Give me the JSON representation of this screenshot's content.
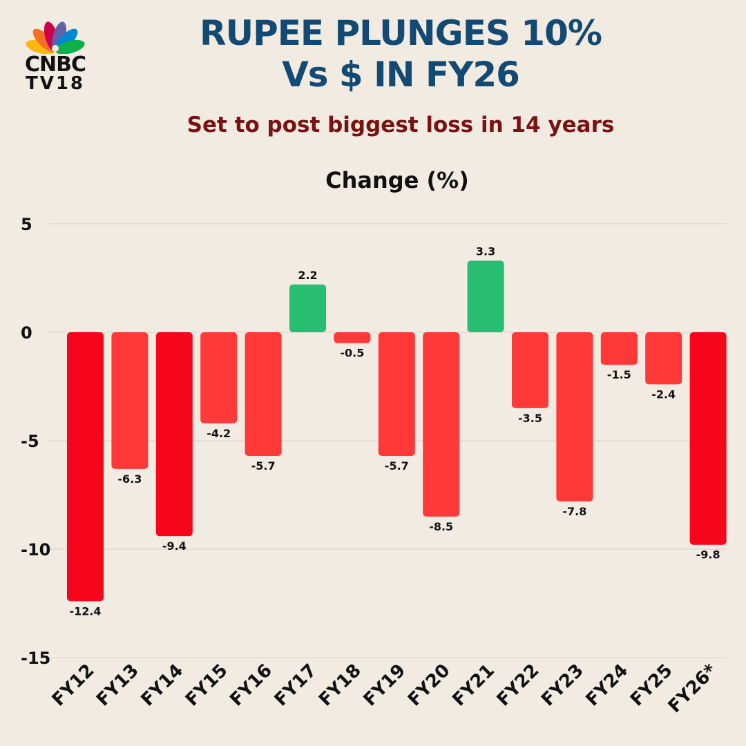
{
  "brand": {
    "logo_line1": "CNBC",
    "logo_line2": "TV18"
  },
  "title": {
    "line1": "RUPEE PLUNGES 10%",
    "line2": "Vs $ IN FY26",
    "subtitle": "Set to post biggest loss in 14 years"
  },
  "colors": {
    "title": "#134a73",
    "subtitle": "#7a1212",
    "positive": "#27be71",
    "negative": "#ff3838",
    "negative_highlight": "#f5061b",
    "background": "#f2ebe2",
    "gridline": "#d8d0c8"
  },
  "chart_data": {
    "type": "bar",
    "title": "Change (%)",
    "xlabel": "",
    "ylabel": "Change (%)",
    "ylim": [
      -15,
      5
    ],
    "yticks": [
      5,
      0,
      -5,
      -10,
      -15
    ],
    "grid": true,
    "categories": [
      "FY12",
      "FY13",
      "FY14",
      "FY15",
      "FY16",
      "FY17",
      "FY18",
      "FY19",
      "FY20",
      "FY21",
      "FY22",
      "FY23",
      "FY24",
      "FY25",
      "FY26*"
    ],
    "values": [
      -12.4,
      -6.3,
      -9.4,
      -4.2,
      -5.7,
      2.2,
      -0.5,
      -5.7,
      -8.5,
      3.3,
      -3.5,
      -7.8,
      -1.5,
      -2.4,
      -9.8
    ],
    "highlighted": [
      "FY12",
      "FY14",
      "FY26*"
    ]
  }
}
